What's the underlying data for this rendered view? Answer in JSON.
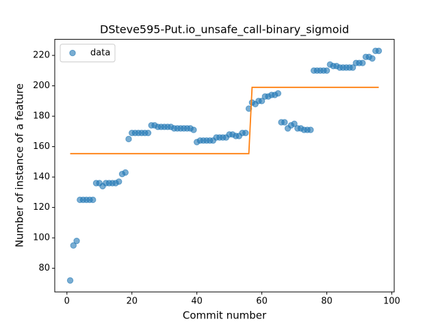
{
  "chart_data": {
    "type": "scatter",
    "title": "DSteve595-Put.io_unsafe_call-binary_sigmoid",
    "xlabel": "Commit number",
    "ylabel": "Number of instance of a feature",
    "x": [
      1,
      2,
      3,
      4,
      5,
      6,
      7,
      8,
      9,
      10,
      11,
      12,
      13,
      14,
      15,
      16,
      17,
      18,
      19,
      20,
      21,
      22,
      23,
      24,
      25,
      26,
      27,
      28,
      29,
      30,
      31,
      32,
      33,
      34,
      35,
      36,
      37,
      38,
      39,
      40,
      41,
      42,
      43,
      44,
      45,
      46,
      47,
      48,
      49,
      50,
      51,
      52,
      53,
      54,
      55,
      56,
      57,
      58,
      59,
      60,
      61,
      62,
      63,
      64,
      65,
      66,
      67,
      68,
      69,
      70,
      71,
      72,
      73,
      74,
      75,
      76,
      77,
      78,
      79,
      80,
      81,
      82,
      83,
      84,
      85,
      86,
      87,
      88,
      89,
      90,
      91,
      92,
      93,
      94,
      95,
      96
    ],
    "series": [
      {
        "name": "data",
        "kind": "points",
        "color": "#1f77b4",
        "values": [
          72,
          95,
          98,
          125,
          125,
          125,
          125,
          125,
          136,
          136,
          134,
          136,
          136,
          136,
          136,
          137,
          142,
          143,
          165,
          169,
          169,
          169,
          169,
          169,
          169,
          174,
          174,
          173,
          173,
          173,
          173,
          173,
          172,
          172,
          172,
          172,
          172,
          172,
          171,
          163,
          164,
          164,
          164,
          164,
          164,
          166,
          166,
          166,
          166,
          168,
          168,
          167,
          167,
          169,
          169,
          185,
          189,
          188,
          190,
          190,
          193,
          193,
          194,
          194,
          195,
          176,
          176,
          172,
          174,
          175,
          172,
          172,
          171,
          171,
          171,
          210,
          210,
          210,
          210,
          210,
          214,
          213,
          213,
          212,
          212,
          212,
          212,
          212,
          215,
          215,
          215,
          219,
          219,
          218,
          223,
          223
        ]
      },
      {
        "kind": "line",
        "color": "#ff7f0e",
        "values": [
          155.4,
          155.4,
          155.4,
          155.4,
          155.4,
          155.4,
          155.4,
          155.4,
          155.4,
          155.4,
          155.4,
          155.4,
          155.4,
          155.4,
          155.4,
          155.4,
          155.4,
          155.4,
          155.4,
          155.4,
          155.4,
          155.4,
          155.4,
          155.4,
          155.4,
          155.4,
          155.4,
          155.4,
          155.4,
          155.4,
          155.4,
          155.4,
          155.4,
          155.4,
          155.4,
          155.4,
          155.4,
          155.4,
          155.4,
          155.4,
          155.4,
          155.4,
          155.4,
          155.4,
          155.4,
          155.4,
          155.4,
          155.4,
          155.4,
          155.4,
          155.4,
          155.4,
          155.4,
          155.4,
          155.4,
          155.4,
          199,
          199,
          199,
          199,
          199,
          199,
          199,
          199,
          199,
          199,
          199,
          199,
          199,
          199,
          199,
          199,
          199,
          199,
          199,
          199,
          199,
          199,
          199,
          199,
          199,
          199,
          199,
          199,
          199,
          199,
          199,
          199,
          199,
          199,
          199,
          199,
          199,
          199,
          199,
          199
        ]
      }
    ],
    "xlim": [
      -3.75,
      100.75
    ],
    "xticks": [
      0,
      20,
      40,
      60,
      80,
      100
    ],
    "ylim": [
      64.45,
      230.55
    ],
    "yticks": [
      80,
      100,
      120,
      140,
      160,
      180,
      200,
      220
    ],
    "legend": "upper left"
  }
}
